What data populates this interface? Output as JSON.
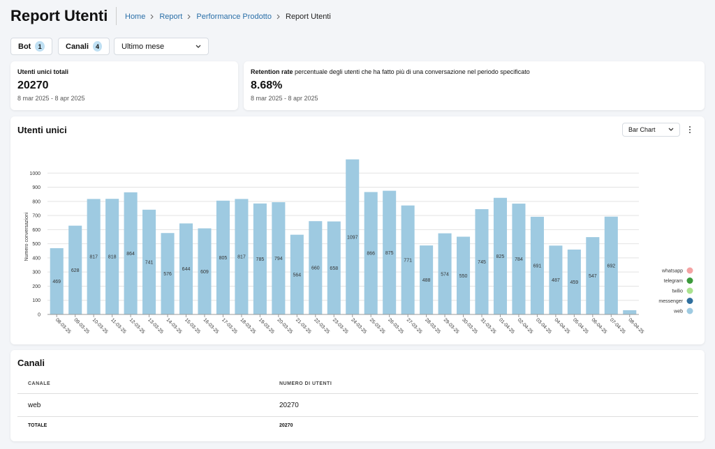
{
  "header": {
    "title": "Report Utenti",
    "breadcrumbs": [
      "Home",
      "Report",
      "Performance Prodotto",
      "Report Utenti"
    ]
  },
  "filters": {
    "bot": {
      "label": "Bot",
      "count": 1
    },
    "canali": {
      "label": "Canali",
      "count": 4
    },
    "period": "Ultimo mese"
  },
  "cards": [
    {
      "title": "Utenti unici totali",
      "value": "20270",
      "range": "8 mar 2025 - 8 apr 2025"
    },
    {
      "title": "Retention rate",
      "description": "percentuale degli utenti che ha fatto più di una conversazione nel periodo specificato",
      "value": "8.68%",
      "range": "8 mar 2025 - 8 apr 2025"
    }
  ],
  "chart_panel": {
    "title": "Utenti unici",
    "view": "Bar Chart"
  },
  "chart_data": {
    "type": "bar",
    "ylabel": "Numero conversazioni",
    "categories": [
      "08-03-25",
      "09-03-25",
      "10-03-25",
      "11-03-25",
      "12-03-25",
      "13-03-25",
      "14-03-25",
      "15-03-25",
      "16-03-25",
      "17-03-25",
      "18-03-25",
      "19-03-25",
      "20-03-25",
      "21-03-25",
      "22-03-25",
      "23-03-25",
      "24-03-25",
      "25-03-25",
      "26-03-25",
      "27-03-25",
      "28-03-25",
      "29-03-25",
      "30-03-25",
      "31-03-25",
      "01-04-25",
      "02-04-25",
      "03-04-25",
      "04-04-25",
      "05-04-25",
      "06-04-25",
      "07-04-25",
      "08-04-25"
    ],
    "values": [
      469,
      628,
      817,
      818,
      864,
      741,
      576,
      644,
      609,
      805,
      817,
      785,
      794,
      564,
      660,
      658,
      1097,
      866,
      875,
      771,
      488,
      574,
      550,
      745,
      825,
      784,
      691,
      487,
      459,
      547,
      692,
      30
    ],
    "color": "#9ecae1",
    "ylim": [
      0,
      1100
    ],
    "yticks": [
      0,
      100,
      200,
      300,
      400,
      500,
      600,
      700,
      800,
      900,
      1000
    ],
    "grid": true,
    "legend": [
      {
        "name": "whatsapp",
        "color": "#f4a3a3"
      },
      {
        "name": "telegram",
        "color": "#3c9a3c"
      },
      {
        "name": "twilio",
        "color": "#a9e28e"
      },
      {
        "name": "messenger",
        "color": "#2f6f9e"
      },
      {
        "name": "web",
        "color": "#9ecae1"
      }
    ]
  },
  "table": {
    "title": "Canali",
    "columns": [
      "CANALE",
      "NUMERO DI UTENTI"
    ],
    "rows": [
      [
        "web",
        "20270"
      ]
    ],
    "total": [
      "TOTALE",
      "20270"
    ]
  }
}
